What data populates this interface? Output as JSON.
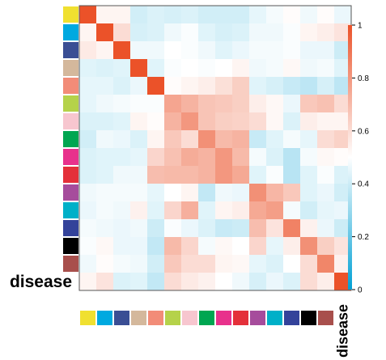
{
  "chart_data": {
    "type": "heatmap",
    "row_labels": [
      "",
      "",
      "",
      "",
      "",
      "",
      "",
      "",
      "",
      "",
      "",
      "",
      "",
      "",
      "",
      "disease"
    ],
    "col_labels": [
      "",
      "",
      "",
      "",
      "",
      "",
      "",
      "",
      "",
      "",
      "",
      "",
      "",
      "",
      "",
      "disease"
    ],
    "group_colors": [
      "#f0e030",
      "#00a9e0",
      "#3a4e94",
      "#d4b89c",
      "#f28c78",
      "#b5d24a",
      "#f7c6cf",
      "#00a651",
      "#e8318c",
      "#e4303a",
      "#a64c9c",
      "#00b0c8",
      "#33429a",
      "#000000",
      "#a84f4c",
      "#ffffff"
    ],
    "values": [
      [
        1.0,
        0.53,
        0.53,
        0.41,
        0.43,
        0.42,
        0.43,
        0.41,
        0.41,
        0.41,
        0.45,
        0.48,
        0.51,
        0.47,
        0.51,
        0.46
      ],
      [
        0.53,
        1.0,
        0.6,
        0.42,
        0.43,
        0.47,
        0.49,
        0.44,
        0.42,
        0.43,
        0.47,
        0.47,
        0.49,
        0.53,
        0.55,
        0.58
      ],
      [
        0.56,
        0.53,
        1.0,
        0.47,
        0.47,
        0.5,
        0.49,
        0.47,
        0.44,
        0.46,
        0.48,
        0.48,
        0.49,
        0.46,
        0.46,
        0.4
      ],
      [
        0.44,
        0.43,
        0.44,
        1.0,
        0.44,
        0.49,
        0.5,
        0.49,
        0.5,
        0.53,
        0.47,
        0.48,
        0.52,
        0.47,
        0.48,
        0.44
      ],
      [
        0.45,
        0.45,
        0.43,
        0.46,
        1.0,
        0.51,
        0.53,
        0.55,
        0.59,
        0.64,
        0.44,
        0.42,
        0.39,
        0.37,
        0.42,
        0.37
      ],
      [
        0.45,
        0.47,
        0.48,
        0.49,
        0.49,
        0.76,
        0.72,
        0.67,
        0.66,
        0.64,
        0.55,
        0.52,
        0.46,
        0.66,
        0.68,
        0.6
      ],
      [
        0.43,
        0.43,
        0.44,
        0.53,
        0.51,
        0.72,
        0.8,
        0.67,
        0.64,
        0.63,
        0.6,
        0.52,
        0.43,
        0.55,
        0.53,
        0.53
      ],
      [
        0.41,
        0.47,
        0.46,
        0.43,
        0.53,
        0.66,
        0.6,
        0.82,
        0.7,
        0.72,
        0.39,
        0.44,
        0.48,
        0.45,
        0.6,
        0.63
      ],
      [
        0.43,
        0.44,
        0.44,
        0.45,
        0.62,
        0.68,
        0.74,
        0.72,
        0.8,
        0.7,
        0.48,
        0.43,
        0.36,
        0.48,
        0.52,
        0.51
      ],
      [
        0.43,
        0.44,
        0.47,
        0.47,
        0.69,
        0.7,
        0.7,
        0.72,
        0.8,
        0.75,
        0.44,
        0.49,
        0.36,
        0.44,
        0.49,
        0.43
      ],
      [
        0.47,
        0.48,
        0.48,
        0.48,
        0.45,
        0.5,
        0.53,
        0.38,
        0.47,
        0.46,
        0.82,
        0.71,
        0.66,
        0.44,
        0.46,
        0.41
      ],
      [
        0.46,
        0.48,
        0.47,
        0.54,
        0.44,
        0.62,
        0.73,
        0.44,
        0.53,
        0.55,
        0.75,
        0.78,
        0.48,
        0.41,
        0.45,
        0.46
      ],
      [
        0.48,
        0.47,
        0.46,
        0.47,
        0.4,
        0.49,
        0.46,
        0.43,
        0.39,
        0.4,
        0.69,
        0.58,
        0.86,
        0.54,
        0.46,
        0.4
      ],
      [
        0.49,
        0.52,
        0.46,
        0.46,
        0.38,
        0.7,
        0.62,
        0.48,
        0.52,
        0.5,
        0.62,
        0.45,
        0.55,
        0.82,
        0.64,
        0.58
      ],
      [
        0.47,
        0.51,
        0.48,
        0.47,
        0.41,
        0.66,
        0.6,
        0.6,
        0.53,
        0.52,
        0.45,
        0.43,
        0.5,
        0.6,
        0.85,
        0.54
      ],
      [
        0.53,
        0.58,
        0.43,
        0.44,
        0.38,
        0.6,
        0.56,
        0.54,
        0.5,
        0.47,
        0.42,
        0.46,
        0.43,
        0.6,
        0.55,
        1.0
      ]
    ],
    "colorbar": {
      "min": 0,
      "max": 1,
      "ticks": [
        0,
        0.2,
        0.4,
        0.6,
        0.8,
        1
      ],
      "tick_labels": [
        "0",
        "0.2",
        "0.4",
        "0.6",
        "0.8",
        "1"
      ],
      "colors": [
        "#00a0d4",
        "#ffffff",
        "#eb5229"
      ]
    }
  }
}
